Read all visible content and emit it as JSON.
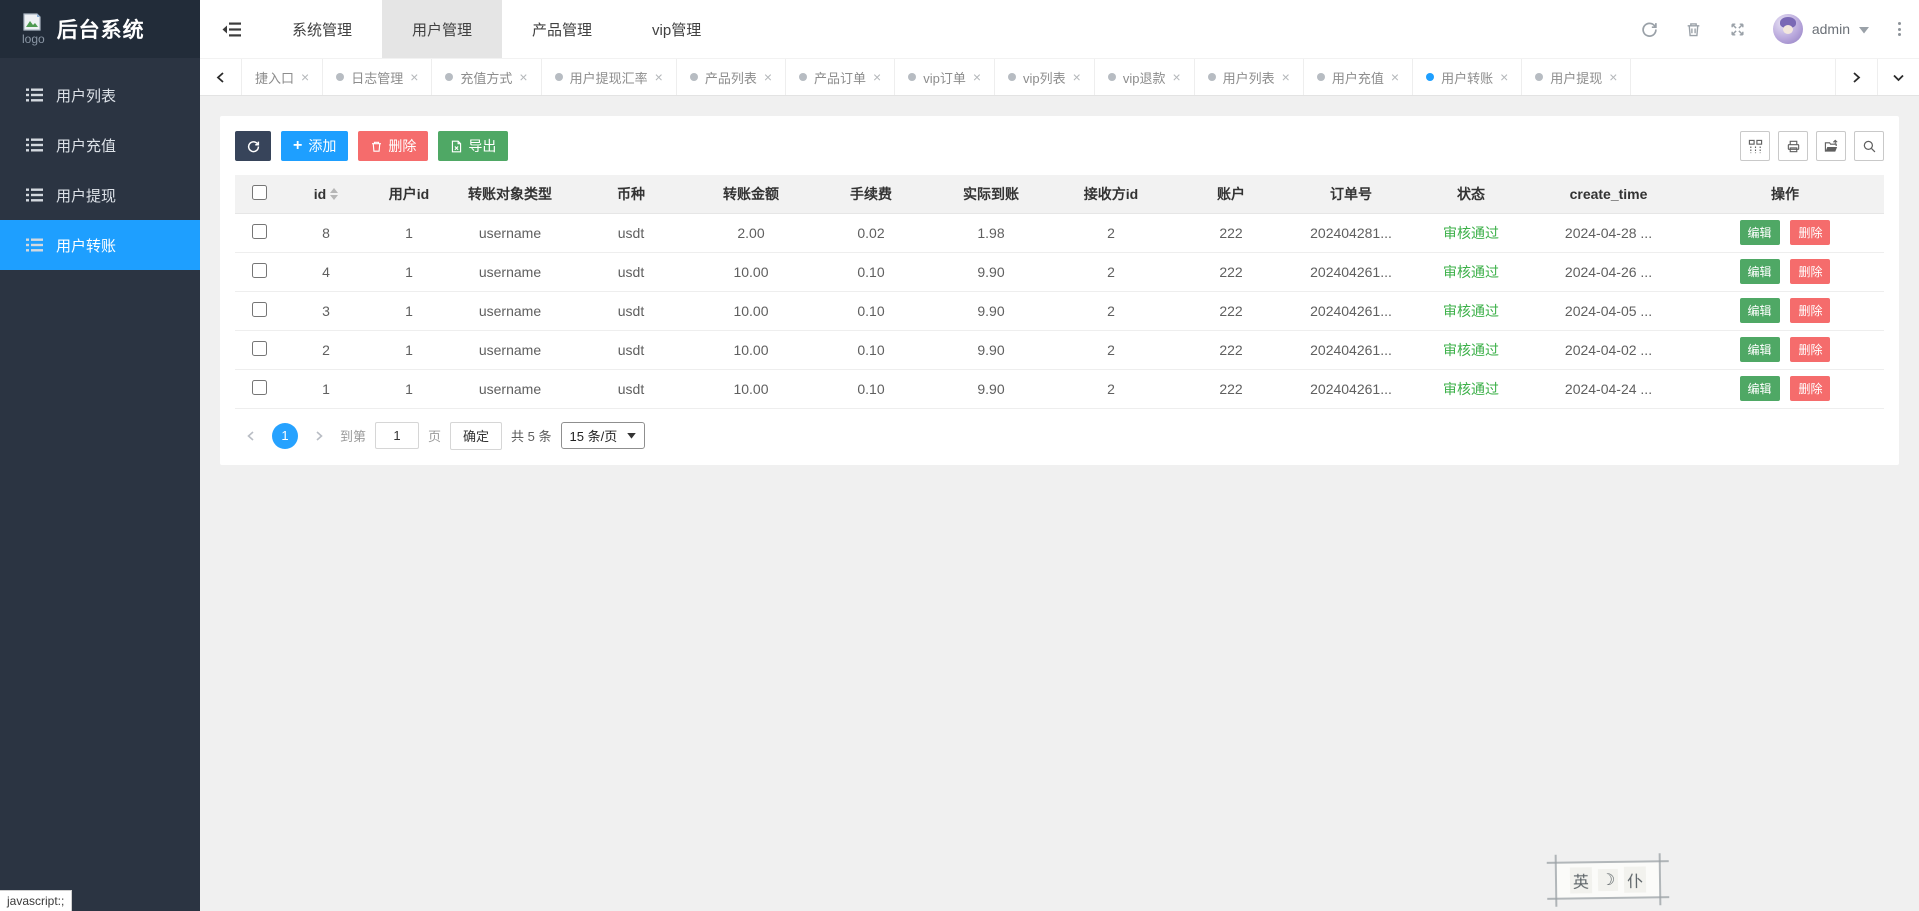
{
  "app": {
    "logo_alt": "logo",
    "title": "后台系统"
  },
  "sidebar": {
    "items": [
      {
        "label": "用户列表",
        "state": ""
      },
      {
        "label": "用户充值",
        "state": ""
      },
      {
        "label": "用户提现",
        "state": ""
      },
      {
        "label": "用户转账",
        "state": "active"
      }
    ]
  },
  "header": {
    "nav": [
      {
        "label": "系统管理",
        "state": ""
      },
      {
        "label": "用户管理",
        "state": "active"
      },
      {
        "label": "产品管理",
        "state": ""
      },
      {
        "label": "vip管理",
        "state": ""
      }
    ],
    "username": "admin"
  },
  "tabs": {
    "close_glyph": "×",
    "items": [
      {
        "label": "捷入口",
        "dot": "none"
      },
      {
        "label": "日志管理",
        "dot": "gray"
      },
      {
        "label": "充值方式",
        "dot": "gray"
      },
      {
        "label": "用户提现汇率",
        "dot": "gray"
      },
      {
        "label": "产品列表",
        "dot": "gray"
      },
      {
        "label": "产品订单",
        "dot": "gray"
      },
      {
        "label": "vip订单",
        "dot": "gray"
      },
      {
        "label": "vip列表",
        "dot": "gray"
      },
      {
        "label": "vip退款",
        "dot": "gray"
      },
      {
        "label": "用户列表",
        "dot": "gray"
      },
      {
        "label": "用户充值",
        "dot": "gray"
      },
      {
        "label": "用户转账",
        "dot": "blue"
      },
      {
        "label": "用户提现",
        "dot": "gray"
      }
    ]
  },
  "toolbar": {
    "add_label": "添加",
    "delete_label": "删除",
    "export_label": "导出"
  },
  "table": {
    "headers": [
      {
        "label": "id",
        "cls": "sortable"
      },
      {
        "label": "用户id",
        "cls": ""
      },
      {
        "label": "转账对象类型",
        "cls": ""
      },
      {
        "label": "币种",
        "cls": ""
      },
      {
        "label": "转账金额",
        "cls": ""
      },
      {
        "label": "手续费",
        "cls": ""
      },
      {
        "label": "实际到账",
        "cls": ""
      },
      {
        "label": "接收方id",
        "cls": ""
      },
      {
        "label": "账户",
        "cls": ""
      },
      {
        "label": "订单号",
        "cls": ""
      },
      {
        "label": "状态",
        "cls": ""
      },
      {
        "label": "create_time",
        "cls": ""
      },
      {
        "label": "操作",
        "cls": ""
      }
    ],
    "edit_label": "编辑",
    "delete_label": "删除",
    "rows": [
      {
        "id": "8",
        "user_id": "1",
        "target_type": "username",
        "coin": "usdt",
        "amount": "2.00",
        "fee": "0.02",
        "actual": "1.98",
        "receiver_id": "2",
        "account": "222",
        "order_no": "202404281...",
        "status": "审核通过",
        "create_time": "2024-04-28 ..."
      },
      {
        "id": "4",
        "user_id": "1",
        "target_type": "username",
        "coin": "usdt",
        "amount": "10.00",
        "fee": "0.10",
        "actual": "9.90",
        "receiver_id": "2",
        "account": "222",
        "order_no": "202404261...",
        "status": "审核通过",
        "create_time": "2024-04-26 ..."
      },
      {
        "id": "3",
        "user_id": "1",
        "target_type": "username",
        "coin": "usdt",
        "amount": "10.00",
        "fee": "0.10",
        "actual": "9.90",
        "receiver_id": "2",
        "account": "222",
        "order_no": "202404261...",
        "status": "审核通过",
        "create_time": "2024-04-05 ..."
      },
      {
        "id": "2",
        "user_id": "1",
        "target_type": "username",
        "coin": "usdt",
        "amount": "10.00",
        "fee": "0.10",
        "actual": "9.90",
        "receiver_id": "2",
        "account": "222",
        "order_no": "202404261...",
        "status": "审核通过",
        "create_time": "2024-04-02 ..."
      },
      {
        "id": "1",
        "user_id": "1",
        "target_type": "username",
        "coin": "usdt",
        "amount": "10.00",
        "fee": "0.10",
        "actual": "9.90",
        "receiver_id": "2",
        "account": "222",
        "order_no": "202404261...",
        "status": "审核通过",
        "create_time": "2024-04-24 ..."
      }
    ]
  },
  "pagination": {
    "page": "1",
    "goto_prefix": "到第",
    "goto_value": "1",
    "goto_suffix": "页",
    "confirm_label": "确定",
    "total_label": "共 5 条",
    "page_size_label": "15 条/页"
  },
  "statusbar": {
    "text": "javascript:;"
  },
  "stamp": {
    "chars": [
      "英",
      "☽",
      "仆"
    ]
  }
}
